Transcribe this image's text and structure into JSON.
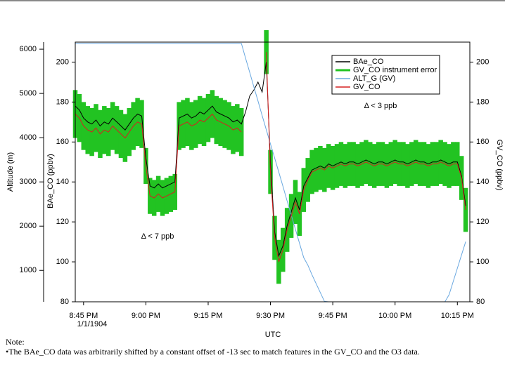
{
  "chart_data": {
    "type": "line",
    "annotations": [
      "Δ < 7 ppb",
      "Δ < 3 ppb"
    ],
    "xlabel": "UTC",
    "ylabel": "BAe_CO (ppbv)",
    "y2label": "GV_CO (ppbv)",
    "y3label": "Altitude (m)",
    "x_date_label": "1/1/1904",
    "note_title": "Note:",
    "note": "•The BAe_CO data was arbitrarily shifted by a constant offset of -13 sec to match features in the GV_CO and the O3 data.",
    "x": [
      "8:43 PM",
      "8:44 PM",
      "8:45 PM",
      "8:46 PM",
      "8:47 PM",
      "8:48 PM",
      "8:49 PM",
      "8:50 PM",
      "8:51 PM",
      "8:52 PM",
      "8:53 PM",
      "8:54 PM",
      "8:55 PM",
      "8:56 PM",
      "8:57 PM",
      "8:58 PM",
      "8:59 PM",
      "9:00 PM",
      "9:01 PM",
      "9:02 PM",
      "9:03 PM",
      "9:04 PM",
      "9:05 PM",
      "9:06 PM",
      "9:07 PM",
      "9:08 PM",
      "9:09 PM",
      "9:10 PM",
      "9:11 PM",
      "9:12 PM",
      "9:13 PM",
      "9:14 PM",
      "9:15 PM",
      "9:16 PM",
      "9:17 PM",
      "9:18 PM",
      "9:19 PM",
      "9:20 PM",
      "9:21 PM",
      "9:22 PM",
      "9:23 PM",
      "9:24 PM",
      "9:25 PM",
      "9:26 PM",
      "9:27 PM",
      "9:28 PM",
      "9:29 PM",
      "9:30 PM",
      "9:31 PM",
      "9:32 PM",
      "9:33 PM",
      "9:34 PM",
      "9:35 PM",
      "9:36 PM",
      "9:37 PM",
      "9:38 PM",
      "9:39 PM",
      "9:40 PM",
      "9:41 PM",
      "9:42 PM",
      "9:43 PM",
      "9:44 PM",
      "9:45 PM",
      "9:46 PM",
      "9:47 PM",
      "9:48 PM",
      "9:49 PM",
      "9:50 PM",
      "9:51 PM",
      "9:52 PM",
      "9:53 PM",
      "9:54 PM",
      "9:55 PM",
      "9:56 PM",
      "9:57 PM",
      "9:58 PM",
      "9:59 PM",
      "10:00 PM",
      "10:01 PM",
      "10:02 PM",
      "10:03 PM",
      "10:04 PM",
      "10:05 PM",
      "10:06 PM",
      "10:07 PM",
      "10:08 PM",
      "10:09 PM",
      "10:10 PM",
      "10:11 PM",
      "10:12 PM",
      "10:13 PM",
      "10:14 PM",
      "10:15 PM",
      "10:16 PM",
      "10:17 PM"
    ],
    "series": [
      {
        "name": "BAe_CO",
        "color": "#000000",
        "values": [
          178,
          176,
          172,
          170,
          169,
          171,
          168,
          170,
          169,
          172,
          170,
          168,
          166,
          169,
          172,
          174,
          173,
          152,
          138,
          137,
          139,
          137,
          138,
          139,
          140,
          172,
          173,
          174,
          172,
          173,
          175,
          174,
          176,
          178,
          175,
          174,
          173,
          172,
          170,
          171,
          169,
          175,
          183,
          186,
          190,
          185,
          200,
          150,
          115,
          103,
          108,
          118,
          125,
          132,
          126,
          138,
          142,
          146,
          147,
          148,
          147,
          149,
          148,
          149,
          150,
          149,
          150,
          150,
          149,
          150,
          151,
          150,
          149,
          150,
          150,
          149,
          150,
          151,
          150,
          150,
          149,
          150,
          151,
          150,
          150,
          149,
          150,
          150,
          151,
          150,
          149,
          150,
          150,
          143,
          128
        ]
      },
      {
        "name": "GV_CO instrument error",
        "color": "#22c322",
        "values": [
          12,
          12,
          12,
          12,
          12,
          12,
          12,
          12,
          12,
          12,
          12,
          12,
          12,
          12,
          12,
          12,
          12,
          9,
          9,
          9,
          9,
          9,
          9,
          9,
          9,
          12,
          12,
          12,
          12,
          12,
          12,
          12,
          12,
          12,
          12,
          12,
          12,
          12,
          12,
          12,
          12,
          null,
          null,
          null,
          null,
          null,
          11,
          11,
          11,
          11,
          11,
          11,
          11,
          11,
          11,
          11,
          11,
          11,
          11,
          11,
          11,
          11,
          11,
          11,
          11,
          11,
          11,
          11,
          11,
          11,
          11,
          11,
          11,
          11,
          11,
          11,
          11,
          11,
          11,
          11,
          11,
          11,
          11,
          11,
          11,
          11,
          11,
          11,
          11,
          11,
          11,
          11,
          11,
          11,
          11
        ]
      },
      {
        "name": "ALT_G (GV)",
        "color": "#6aa8e0",
        "axis": "y3",
        "values": [
          6130,
          6130,
          6130,
          6130,
          6130,
          6130,
          6130,
          6130,
          6130,
          6130,
          6130,
          6130,
          6130,
          6130,
          6130,
          6130,
          6130,
          6130,
          6130,
          6130,
          6130,
          6130,
          6130,
          6130,
          6130,
          6130,
          6130,
          6130,
          6130,
          6130,
          6130,
          6130,
          6130,
          6130,
          6130,
          6130,
          6130,
          6130,
          6130,
          6130,
          6130,
          5800,
          5480,
          5150,
          4830,
          4500,
          4180,
          3860,
          3540,
          3220,
          2900,
          2570,
          2250,
          1930,
          1610,
          1290,
          1120,
          900,
          700,
          500,
          300,
          290,
          290,
          290,
          290,
          290,
          290,
          290,
          290,
          290,
          290,
          290,
          290,
          290,
          290,
          290,
          290,
          290,
          290,
          290,
          290,
          290,
          290,
          290,
          290,
          290,
          290,
          290,
          290,
          290,
          450,
          750,
          1050,
          1350,
          1650
        ]
      },
      {
        "name": "GV_CO",
        "color": "#d62020",
        "axis": "y2",
        "values": [
          174,
          172,
          168,
          166,
          165,
          167,
          164,
          166,
          165,
          168,
          166,
          164,
          162,
          165,
          168,
          170,
          169,
          148,
          133,
          132,
          134,
          132,
          133,
          134,
          135,
          168,
          169,
          170,
          168,
          169,
          171,
          170,
          172,
          174,
          171,
          170,
          169,
          168,
          166,
          167,
          165,
          null,
          null,
          null,
          null,
          null,
          205,
          145,
          112,
          100,
          106,
          116,
          123,
          130,
          124,
          136,
          141,
          145,
          146,
          147,
          146,
          148,
          147,
          148,
          149,
          148,
          149,
          149,
          148,
          149,
          150,
          149,
          148,
          149,
          149,
          148,
          149,
          150,
          149,
          149,
          148,
          149,
          150,
          149,
          149,
          148,
          149,
          149,
          150,
          149,
          148,
          149,
          149,
          142,
          126
        ]
      }
    ],
    "xlim": [
      "8:43 PM",
      "10:18 PM"
    ],
    "xticks": [
      "8:45 PM",
      "9:00 PM",
      "9:15 PM",
      "9:30 PM",
      "9:45 PM",
      "10:00 PM",
      "10:15 PM"
    ],
    "ylim": [
      80,
      210
    ],
    "yticks": [
      80,
      100,
      120,
      140,
      160,
      180,
      200
    ],
    "y2lim": [
      80,
      210
    ],
    "y2ticks": [
      80,
      100,
      120,
      140,
      160,
      180,
      200
    ],
    "y3lim": [
      290,
      6160
    ],
    "y3ticks": [
      1000,
      2000,
      3000,
      4000,
      5000,
      6000
    ],
    "legend": "top-right"
  }
}
